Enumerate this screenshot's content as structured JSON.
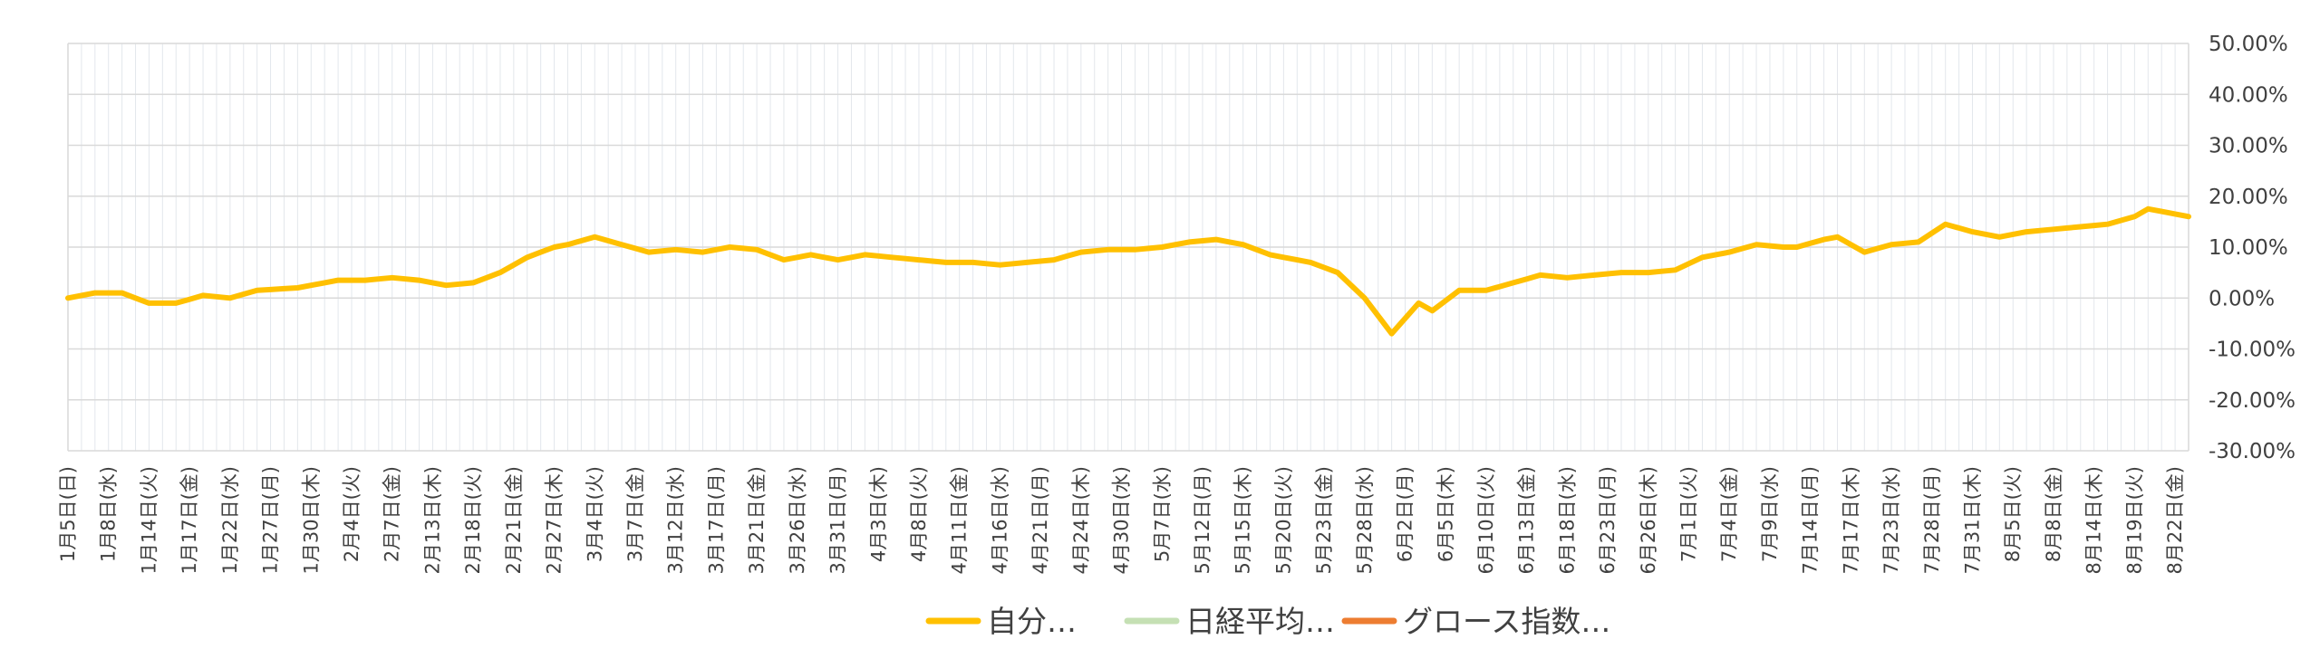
{
  "chart_data": {
    "type": "line",
    "title": "",
    "xlabel": "",
    "ylabel": "",
    "ylim": [
      -30,
      50
    ],
    "y_tick_labels": [
      "50.00%",
      "40.00%",
      "30.00%",
      "20.00%",
      "10.00%",
      "0.00%",
      "-10.00%",
      "-20.00%",
      "-30.00%"
    ],
    "y_axis_position": "right",
    "grid": true,
    "legend_position": "bottom",
    "x_tick_labels": [
      "1月5日(日)",
      "1月8日(水)",
      "1月14日(火)",
      "1月17日(金)",
      "1月22日(水)",
      "1月27日(月)",
      "1月30日(木)",
      "2月4日(火)",
      "2月7日(金)",
      "2月13日(木)",
      "2月18日(火)",
      "2月21日(金)",
      "2月27日(木)",
      "3月4日(火)",
      "3月7日(金)",
      "3月12日(水)",
      "3月17日(月)",
      "3月21日(金)",
      "3月26日(水)",
      "3月31日(月)",
      "4月3日(木)",
      "4月8日(火)",
      "4月11日(金)",
      "4月16日(水)",
      "4月21日(月)",
      "4月24日(木)",
      "4月30日(水)",
      "5月7日(水)",
      "5月12日(月)",
      "5月15日(木)",
      "5月20日(火)",
      "5月23日(金)",
      "5月28日(水)",
      "6月2日(月)",
      "6月5日(木)",
      "6月10日(火)",
      "6月13日(金)",
      "6月18日(水)",
      "6月23日(月)",
      "6月26日(木)",
      "7月1日(火)",
      "7月4日(金)",
      "7月9日(水)",
      "7月14日(月)",
      "7月17日(木)",
      "7月23日(水)",
      "7月28日(月)",
      "7月31日(木)",
      "8月5日(火)",
      "8月8日(金)",
      "8月14日(木)",
      "8月19日(火)",
      "8月22日(金)"
    ],
    "n_points": 158,
    "series": [
      {
        "name": "自分…",
        "color": "#FFC000",
        "keyframes": [
          [
            0,
            0
          ],
          [
            2,
            1
          ],
          [
            4,
            1
          ],
          [
            6,
            -1
          ],
          [
            8,
            -1
          ],
          [
            10,
            0.5
          ],
          [
            12,
            0
          ],
          [
            14,
            1.5
          ],
          [
            17,
            2
          ],
          [
            20,
            3.5
          ],
          [
            22,
            3.5
          ],
          [
            24,
            4
          ],
          [
            26,
            3.5
          ],
          [
            28,
            2.5
          ],
          [
            30,
            3
          ],
          [
            32,
            5
          ],
          [
            34,
            8
          ],
          [
            36,
            10
          ],
          [
            37,
            10.5
          ],
          [
            39,
            12
          ],
          [
            41,
            10.5
          ],
          [
            43,
            9
          ],
          [
            45,
            9.5
          ],
          [
            47,
            9
          ],
          [
            49,
            10
          ],
          [
            51,
            9.5
          ],
          [
            53,
            7.5
          ],
          [
            55,
            8.5
          ],
          [
            57,
            7.5
          ],
          [
            59,
            8.5
          ],
          [
            61,
            8
          ],
          [
            63,
            7.5
          ],
          [
            65,
            7
          ],
          [
            67,
            7
          ],
          [
            69,
            6.5
          ],
          [
            71,
            7
          ],
          [
            73,
            7.5
          ],
          [
            75,
            9
          ],
          [
            77,
            9.5
          ],
          [
            79,
            9.5
          ],
          [
            81,
            10
          ],
          [
            83,
            11
          ],
          [
            85,
            11.5
          ],
          [
            87,
            10.5
          ],
          [
            89,
            8.5
          ],
          [
            90,
            8
          ],
          [
            92,
            7
          ],
          [
            94,
            5
          ],
          [
            96,
            0
          ],
          [
            98,
            -7
          ],
          [
            100,
            -1
          ],
          [
            101,
            -2.5
          ],
          [
            103,
            1.5
          ],
          [
            105,
            1.5
          ],
          [
            107,
            3
          ],
          [
            109,
            4.5
          ],
          [
            111,
            4
          ],
          [
            113,
            4.5
          ],
          [
            115,
            5
          ],
          [
            117,
            5
          ],
          [
            119,
            5.5
          ],
          [
            121,
            8
          ],
          [
            123,
            9
          ],
          [
            125,
            10.5
          ],
          [
            127,
            10
          ],
          [
            128,
            10
          ],
          [
            130,
            11.5
          ],
          [
            131,
            12
          ],
          [
            133,
            9
          ],
          [
            135,
            10.5
          ],
          [
            137,
            11
          ],
          [
            139,
            14.5
          ],
          [
            141,
            13
          ],
          [
            143,
            12
          ],
          [
            145,
            13
          ],
          [
            147,
            13.5
          ],
          [
            149,
            14
          ],
          [
            151,
            14.5
          ],
          [
            153,
            16
          ],
          [
            154,
            17.5
          ],
          [
            155,
            17
          ],
          [
            157,
            16
          ]
        ],
        "keyframes_scale": 1
      }
    ]
  },
  "legend": [
    {
      "label": "自分…",
      "color": "#FFC000"
    },
    {
      "label": "日経平均…",
      "color": "#C5E0B4"
    },
    {
      "label": "グロース指数…",
      "color": "#ED7D31"
    }
  ]
}
